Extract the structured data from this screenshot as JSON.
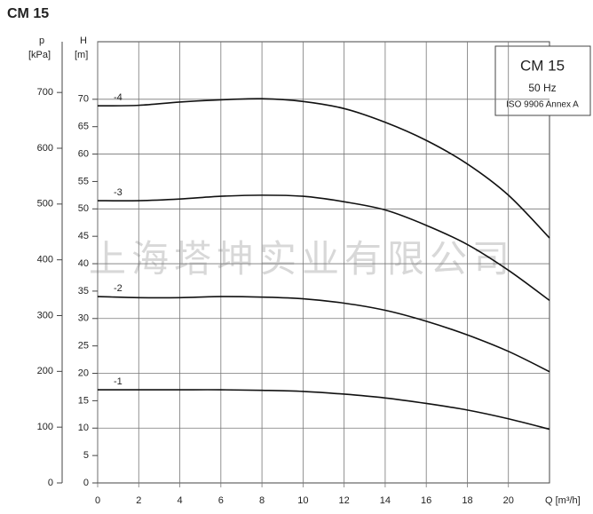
{
  "chart_data": {
    "type": "line",
    "title": "CM 15",
    "legend_box": [
      "CM 15",
      "50 Hz",
      "ISO 9906 Annex A"
    ],
    "y_label": [
      "H",
      "[m]"
    ],
    "y2_label": [
      "p",
      "[kPa]"
    ],
    "x_label": "Q [m³/h]",
    "watermark": "上海塔坤实业有限公司",
    "x": [
      0,
      2,
      4,
      6,
      8,
      10,
      12,
      14,
      16,
      18,
      20,
      22
    ],
    "series": [
      {
        "name": "-4",
        "color": "#111111",
        "values": [
          68.8,
          68.9,
          69.5,
          69.9,
          70.1,
          69.6,
          68.3,
          65.8,
          62.5,
          58.2,
          52.5,
          44.7
        ]
      },
      {
        "name": "-3",
        "color": "#111111",
        "values": [
          51.5,
          51.5,
          51.8,
          52.3,
          52.5,
          52.3,
          51.3,
          49.8,
          47,
          43.5,
          38.8,
          33.3
        ]
      },
      {
        "name": "-2",
        "color": "#111111",
        "values": [
          34,
          33.8,
          33.8,
          34,
          33.9,
          33.6,
          32.8,
          31.5,
          29.5,
          27,
          24,
          20.3
        ]
      },
      {
        "name": "-1",
        "color": "#111111",
        "values": [
          17,
          17,
          17,
          17,
          16.9,
          16.7,
          16.2,
          15.5,
          14.5,
          13.3,
          11.7,
          9.8
        ]
      }
    ],
    "xlim": [
      0,
      22
    ],
    "xticks": [
      0,
      2,
      4,
      6,
      8,
      10,
      12,
      14,
      16,
      18,
      20
    ],
    "ylim": [
      0,
      80.5
    ],
    "yticks": [
      0,
      5,
      10,
      15,
      20,
      25,
      30,
      35,
      40,
      45,
      50,
      55,
      60,
      65,
      70
    ],
    "y2lim": [
      0,
      791
    ],
    "y2ticks": [
      0,
      100,
      200,
      300,
      400,
      500,
      600,
      700
    ],
    "grid_y": [
      10,
      20,
      30,
      40,
      50,
      60,
      70
    ]
  }
}
